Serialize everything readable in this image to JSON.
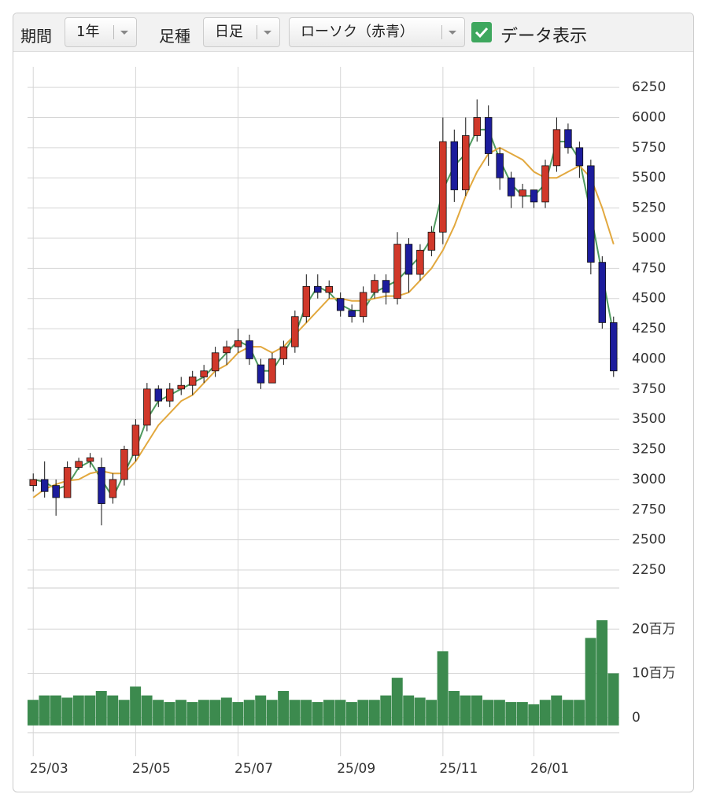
{
  "controls": {
    "period_label": "期間",
    "period": "1年",
    "bar_label": "足種",
    "bar": "日足",
    "style": "ローソク（赤青）",
    "data_toggle": "データ表示"
  },
  "chart_data": {
    "type": "candlestick",
    "categories": [
      "25/03",
      null,
      null,
      null,
      null,
      null,
      null,
      null,
      null,
      "25/05",
      null,
      null,
      null,
      null,
      null,
      null,
      null,
      null,
      "25/07",
      null,
      null,
      null,
      null,
      null,
      null,
      null,
      null,
      "25/09",
      null,
      null,
      null,
      null,
      null,
      null,
      null,
      null,
      "25/11",
      null,
      null,
      null,
      null,
      null,
      null,
      null,
      "26/01",
      null,
      null,
      null,
      null,
      null,
      null,
      null
    ],
    "open": [
      2950,
      3000,
      2950,
      2850,
      3100,
      3150,
      3100,
      2850,
      3000,
      3200,
      3450,
      3750,
      3650,
      3750,
      3780,
      3850,
      3900,
      4050,
      4100,
      4150,
      3950,
      3800,
      4000,
      4100,
      4350,
      4600,
      4550,
      4500,
      4400,
      4350,
      4550,
      4650,
      4500,
      4950,
      4700,
      4900,
      5050,
      5800,
      5400,
      5850,
      6000,
      5700,
      5500,
      5350,
      5400,
      5300,
      5600,
      5900,
      5750,
      5600,
      4800,
      4300
    ],
    "high": [
      3050,
      3150,
      3000,
      3150,
      3180,
      3220,
      3180,
      3050,
      3280,
      3500,
      3800,
      3780,
      3800,
      3850,
      3900,
      3950,
      4100,
      4150,
      4250,
      4200,
      4000,
      4050,
      4150,
      4400,
      4700,
      4700,
      4650,
      4550,
      4450,
      4600,
      4700,
      4700,
      5050,
      5000,
      4950,
      5100,
      6000,
      5900,
      6000,
      6150,
      6100,
      5750,
      5550,
      5450,
      5400,
      5650,
      6000,
      5950,
      5800,
      5650,
      4850,
      4350
    ],
    "low": [
      2900,
      2850,
      2700,
      2850,
      3080,
      3100,
      2620,
      2800,
      2950,
      3150,
      3400,
      3600,
      3600,
      3700,
      3700,
      3800,
      3850,
      3950,
      4050,
      3950,
      3750,
      3800,
      3950,
      4050,
      4300,
      4500,
      4500,
      4350,
      4300,
      4300,
      4500,
      4450,
      4450,
      4550,
      4650,
      4850,
      4950,
      5300,
      5350,
      5800,
      5600,
      5400,
      5250,
      5250,
      5250,
      5250,
      5550,
      5700,
      5500,
      4700,
      4250,
      3850
    ],
    "close": [
      3000,
      2900,
      2850,
      3100,
      3150,
      3180,
      2800,
      3000,
      3250,
      3450,
      3750,
      3650,
      3750,
      3780,
      3850,
      3900,
      4050,
      4100,
      4150,
      4000,
      3800,
      4000,
      4100,
      4350,
      4600,
      4550,
      4600,
      4400,
      4350,
      4550,
      4650,
      4550,
      4950,
      4700,
      4900,
      5050,
      5800,
      5400,
      5850,
      6000,
      5700,
      5500,
      5350,
      5400,
      5300,
      5600,
      5900,
      5750,
      5600,
      4800,
      4300,
      3900
    ],
    "up_color": "#d0382a",
    "down_color": "#1c1c9c",
    "lines": [
      {
        "color": "#4f9a5f",
        "values": [
          3000,
          2980,
          2920,
          2950,
          3100,
          3150,
          3000,
          2850,
          3050,
          3250,
          3500,
          3650,
          3700,
          3750,
          3800,
          3850,
          3950,
          4050,
          4150,
          4100,
          3900,
          3900,
          4050,
          4200,
          4450,
          4600,
          4550,
          4450,
          4400,
          4400,
          4550,
          4600,
          4650,
          4750,
          4850,
          5000,
          5400,
          5600,
          5700,
          5900,
          5900,
          5650,
          5450,
          5350,
          5350,
          5450,
          5800,
          5800,
          5650,
          5200,
          4700,
          4200
        ]
      },
      {
        "color": "#e2a83e",
        "values": [
          2850,
          2920,
          2960,
          2990,
          3000,
          3050,
          3070,
          3050,
          3050,
          3150,
          3300,
          3450,
          3550,
          3650,
          3700,
          3800,
          3900,
          3950,
          4050,
          4100,
          4100,
          4050,
          4100,
          4200,
          4300,
          4400,
          4500,
          4500,
          4480,
          4480,
          4500,
          4520,
          4520,
          4550,
          4650,
          4750,
          4900,
          5100,
          5350,
          5550,
          5700,
          5750,
          5700,
          5650,
          5550,
          5500,
          5500,
          5550,
          5600,
          5500,
          5250,
          4950
        ]
      }
    ],
    "ylim": [
      2120,
      6420
    ],
    "yticks": [
      2250,
      2500,
      2750,
      3000,
      3250,
      3500,
      3750,
      4000,
      4250,
      4500,
      4750,
      5000,
      5250,
      5500,
      5750,
      6000,
      6250
    ],
    "volume": {
      "color": "#3c8a4e",
      "values": [
        4000000,
        5000000,
        5000000,
        4500000,
        5000000,
        5000000,
        6000000,
        5000000,
        4000000,
        7000000,
        5000000,
        4000000,
        3500000,
        4000000,
        3500000,
        4000000,
        4000000,
        4500000,
        3500000,
        4000000,
        5000000,
        4000000,
        6000000,
        4000000,
        4000000,
        3500000,
        4000000,
        4000000,
        3500000,
        4000000,
        4000000,
        5000000,
        9000000,
        5000000,
        4500000,
        4000000,
        15000000,
        6000000,
        5000000,
        5000000,
        4000000,
        4000000,
        3500000,
        3500000,
        3000000,
        4000000,
        5000000,
        4000000,
        4000000,
        18000000,
        22000000,
        10000000
      ],
      "ylim": [
        -2000000,
        30000000
      ],
      "yticks": [
        0,
        {
          "value": 10000000,
          "label": "10百万"
        },
        {
          "value": 20000000,
          "label": "20百万"
        }
      ]
    },
    "grid": true
  }
}
